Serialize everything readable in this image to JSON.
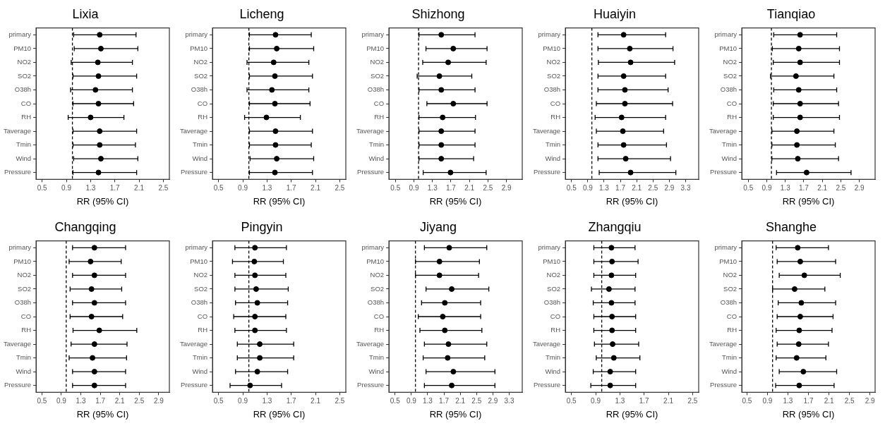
{
  "chart_data": [
    {
      "type": "scatter",
      "title": "Lixia",
      "xlabel": "RR (95% CI)",
      "orientation": "horizontal",
      "marker": "circle",
      "color": "#000000",
      "categories": [
        "primary",
        "PM10",
        "NO2",
        "SO2",
        "O38h",
        "CO",
        "RH",
        "Taverage",
        "Tmin",
        "Wind",
        "Pressure"
      ],
      "values": [
        1.45,
        1.47,
        1.42,
        1.43,
        1.38,
        1.43,
        1.3,
        1.45,
        1.45,
        1.47,
        1.43
      ],
      "errors": [
        [
          1.02,
          2.05
        ],
        [
          1.03,
          2.08
        ],
        [
          0.98,
          1.99
        ],
        [
          1.01,
          2.06
        ],
        [
          0.97,
          1.99
        ],
        [
          1.01,
          2.01
        ],
        [
          0.93,
          1.85
        ],
        [
          1.01,
          2.06
        ],
        [
          1.01,
          2.04
        ],
        [
          1.02,
          2.08
        ],
        [
          1.01,
          2.06
        ]
      ],
      "xlim": [
        0.4,
        2.6
      ],
      "xticks": [
        0.5,
        0.9,
        1.3,
        1.7,
        2.1,
        2.5
      ],
      "ref_lines": [
        {
          "axis": "x",
          "value": 1,
          "line_style": "dashed"
        }
      ]
    },
    {
      "type": "scatter",
      "title": "Licheng",
      "xlabel": "RR (95% CI)",
      "orientation": "horizontal",
      "marker": "circle",
      "color": "#000000",
      "categories": [
        "primary",
        "PM10",
        "NO2",
        "SO2",
        "O38h",
        "CO",
        "RH",
        "Taverage",
        "Tmin",
        "Wind",
        "Pressure"
      ],
      "values": [
        1.44,
        1.46,
        1.41,
        1.43,
        1.38,
        1.43,
        1.29,
        1.44,
        1.44,
        1.46,
        1.43
      ],
      "errors": [
        [
          1.01,
          2.03
        ],
        [
          1.01,
          2.07
        ],
        [
          0.97,
          1.99
        ],
        [
          1.01,
          2.05
        ],
        [
          0.97,
          1.99
        ],
        [
          1.01,
          2.01
        ],
        [
          0.93,
          1.85
        ],
        [
          1.01,
          2.05
        ],
        [
          1.01,
          2.03
        ],
        [
          1.02,
          2.07
        ],
        [
          1.01,
          2.05
        ]
      ],
      "xlim": [
        0.4,
        2.6
      ],
      "xticks": [
        0.5,
        0.9,
        1.3,
        1.7,
        2.1,
        2.5
      ],
      "ref_lines": [
        {
          "axis": "x",
          "value": 1,
          "line_style": "dashed"
        }
      ]
    },
    {
      "type": "scatter",
      "title": "Shizhong",
      "xlabel": "RR (95% CI)",
      "orientation": "horizontal",
      "marker": "circle",
      "color": "#000000",
      "categories": [
        "primary",
        "PM10",
        "NO2",
        "SO2",
        "O38h",
        "CO",
        "RH",
        "Taverage",
        "Tmin",
        "Wind",
        "Pressure"
      ],
      "values": [
        1.49,
        1.75,
        1.64,
        1.45,
        1.49,
        1.75,
        1.52,
        1.49,
        1.49,
        1.49,
        1.69
      ],
      "errors": [
        [
          1.01,
          2.22
        ],
        [
          1.16,
          2.48
        ],
        [
          1.09,
          2.46
        ],
        [
          0.97,
          2.15
        ],
        [
          1.01,
          2.22
        ],
        [
          1.18,
          2.48
        ],
        [
          1.01,
          2.23
        ],
        [
          1.01,
          2.22
        ],
        [
          1.01,
          2.22
        ],
        [
          1.01,
          2.19
        ],
        [
          1.1,
          2.46
        ]
      ],
      "xlim": [
        0.36,
        3.24
      ],
      "xticks": [
        0.5,
        0.9,
        1.3,
        1.7,
        2.1,
        2.5,
        2.9
      ],
      "ref_lines": [
        {
          "axis": "x",
          "value": 1,
          "line_style": "dashed"
        }
      ]
    },
    {
      "type": "scatter",
      "title": "Huaiyin",
      "xlabel": "RR (95% CI)",
      "orientation": "horizontal",
      "marker": "circle",
      "color": "#000000",
      "categories": [
        "primary",
        "PM10",
        "NO2",
        "SO2",
        "O38h",
        "CO",
        "RH",
        "Taverage",
        "Tmin",
        "Wind",
        "Pressure"
      ],
      "values": [
        1.78,
        1.93,
        1.95,
        1.78,
        1.81,
        1.81,
        1.73,
        1.76,
        1.78,
        1.83,
        1.95
      ],
      "errors": [
        [
          1.15,
          2.81
        ],
        [
          1.15,
          2.99
        ],
        [
          1.16,
          3.03
        ],
        [
          1.15,
          2.81
        ],
        [
          1.15,
          2.87
        ],
        [
          1.11,
          2.98
        ],
        [
          1.08,
          2.81
        ],
        [
          1.11,
          2.76
        ],
        [
          1.15,
          2.83
        ],
        [
          1.15,
          2.93
        ],
        [
          1.18,
          3.06
        ]
      ],
      "xlim": [
        0.35,
        3.62
      ],
      "xticks": [
        0.5,
        0.9,
        1.3,
        1.7,
        2.1,
        2.5,
        2.9,
        3.3
      ],
      "ref_lines": [
        {
          "axis": "x",
          "value": 1,
          "line_style": "dashed"
        }
      ]
    },
    {
      "type": "scatter",
      "title": "Tianqiao",
      "xlabel": "RR (95% CI)",
      "orientation": "horizontal",
      "marker": "circle",
      "color": "#000000",
      "categories": [
        "primary",
        "PM10",
        "NO2",
        "SO2",
        "O38h",
        "CO",
        "RH",
        "Taverage",
        "Tmin",
        "Wind",
        "Pressure"
      ],
      "values": [
        1.62,
        1.59,
        1.62,
        1.53,
        1.59,
        1.62,
        1.62,
        1.55,
        1.55,
        1.57,
        1.76
      ],
      "errors": [
        [
          1.05,
          2.41
        ],
        [
          1.02,
          2.47
        ],
        [
          1.04,
          2.47
        ],
        [
          0.98,
          2.35
        ],
        [
          1.05,
          2.41
        ],
        [
          1.04,
          2.45
        ],
        [
          1.04,
          2.47
        ],
        [
          1.01,
          2.35
        ],
        [
          1.01,
          2.38
        ],
        [
          1.01,
          2.45
        ],
        [
          1.11,
          2.72
        ]
      ],
      "xlim": [
        0.36,
        3.24
      ],
      "xticks": [
        0.5,
        0.9,
        1.3,
        1.7,
        2.1,
        2.5,
        2.9
      ],
      "ref_lines": [
        {
          "axis": "x",
          "value": 1,
          "line_style": "dashed"
        }
      ]
    },
    {
      "type": "scatter",
      "title": "Changqing",
      "xlabel": "RR (95% CI)",
      "orientation": "horizontal",
      "marker": "circle",
      "color": "#000000",
      "categories": [
        "primary",
        "PM10",
        "NO2",
        "SO2",
        "O38h",
        "CO",
        "RH",
        "Taverage",
        "Tmin",
        "Wind",
        "Pressure"
      ],
      "values": [
        1.58,
        1.5,
        1.58,
        1.52,
        1.58,
        1.52,
        1.68,
        1.58,
        1.54,
        1.58,
        1.58
      ],
      "errors": [
        [
          1.13,
          2.22
        ],
        [
          1.06,
          2.13
        ],
        [
          1.13,
          2.22
        ],
        [
          1.08,
          2.14
        ],
        [
          1.13,
          2.22
        ],
        [
          1.08,
          2.16
        ],
        [
          1.14,
          2.45
        ],
        [
          1.1,
          2.25
        ],
        [
          1.06,
          2.24
        ],
        [
          1.13,
          2.22
        ],
        [
          1.13,
          2.22
        ]
      ],
      "xlim": [
        0.38,
        3.12
      ],
      "xticks": [
        0.5,
        0.9,
        1.3,
        1.7,
        2.1,
        2.5,
        2.9
      ],
      "ref_lines": [
        {
          "axis": "x",
          "value": 1,
          "line_style": "dashed"
        }
      ]
    },
    {
      "type": "scatter",
      "title": "Pingyin",
      "xlabel": "RR (95% CI)",
      "orientation": "horizontal",
      "marker": "circle",
      "color": "#000000",
      "categories": [
        "primary",
        "PM10",
        "NO2",
        "SO2",
        "O38h",
        "CO",
        "RH",
        "Taverage",
        "Tmin",
        "Wind",
        "Pressure"
      ],
      "values": [
        1.1,
        1.09,
        1.1,
        1.12,
        1.14,
        1.1,
        1.1,
        1.18,
        1.18,
        1.14,
        1.02
      ],
      "errors": [
        [
          0.77,
          1.62
        ],
        [
          0.73,
          1.57
        ],
        [
          0.77,
          1.61
        ],
        [
          0.77,
          1.65
        ],
        [
          0.78,
          1.64
        ],
        [
          0.75,
          1.61
        ],
        [
          0.77,
          1.62
        ],
        [
          0.81,
          1.74
        ],
        [
          0.81,
          1.74
        ],
        [
          0.78,
          1.64
        ],
        [
          0.69,
          1.54
        ]
      ],
      "xlim": [
        0.4,
        2.6
      ],
      "xticks": [
        0.5,
        0.9,
        1.3,
        1.7,
        2.1,
        2.5
      ],
      "ref_lines": [
        {
          "axis": "x",
          "value": 1,
          "line_style": "dashed"
        }
      ]
    },
    {
      "type": "scatter",
      "title": "Jiyang",
      "xlabel": "RR (95% CI)",
      "orientation": "horizontal",
      "marker": "circle",
      "color": "#000000",
      "categories": [
        "primary",
        "PM10",
        "NO2",
        "SO2",
        "O38h",
        "CO",
        "RH",
        "Taverage",
        "Tmin",
        "Wind",
        "Pressure"
      ],
      "values": [
        1.83,
        1.59,
        1.59,
        1.89,
        1.72,
        1.67,
        1.72,
        1.81,
        1.79,
        1.93,
        1.89
      ],
      "errors": [
        [
          1.22,
          2.75
        ],
        [
          1.0,
          2.57
        ],
        [
          1.0,
          2.55
        ],
        [
          1.26,
          2.8
        ],
        [
          1.15,
          2.6
        ],
        [
          1.07,
          2.6
        ],
        [
          1.11,
          2.63
        ],
        [
          1.22,
          2.75
        ],
        [
          1.19,
          2.7
        ],
        [
          1.26,
          2.95
        ],
        [
          1.22,
          2.95
        ]
      ],
      "xlim": [
        0.35,
        3.62
      ],
      "xticks": [
        0.5,
        0.9,
        1.3,
        1.7,
        2.1,
        2.5,
        2.9,
        3.3
      ],
      "ref_lines": [
        {
          "axis": "x",
          "value": 1,
          "line_style": "dashed"
        }
      ]
    },
    {
      "type": "scatter",
      "title": "Zhangqiu",
      "xlabel": "RR (95% CI)",
      "orientation": "horizontal",
      "marker": "circle",
      "color": "#000000",
      "categories": [
        "primary",
        "PM10",
        "NO2",
        "SO2",
        "O38h",
        "CO",
        "RH",
        "Taverage",
        "Tmin",
        "Wind",
        "Pressure"
      ],
      "values": [
        1.16,
        1.17,
        1.16,
        1.12,
        1.16,
        1.17,
        1.17,
        1.18,
        1.2,
        1.14,
        1.14
      ],
      "errors": [
        [
          0.87,
          1.55
        ],
        [
          0.87,
          1.6
        ],
        [
          0.87,
          1.56
        ],
        [
          0.83,
          1.55
        ],
        [
          0.86,
          1.55
        ],
        [
          0.87,
          1.56
        ],
        [
          0.87,
          1.56
        ],
        [
          0.88,
          1.61
        ],
        [
          0.91,
          1.63
        ],
        [
          0.86,
          1.56
        ],
        [
          0.82,
          1.56
        ]
      ],
      "xlim": [
        0.4,
        2.6
      ],
      "xticks": [
        0.5,
        0.9,
        1.3,
        1.7,
        2.1,
        2.5
      ],
      "ref_lines": [
        {
          "axis": "x",
          "value": 1,
          "line_style": "dashed"
        }
      ]
    },
    {
      "type": "scatter",
      "title": "Shanghe",
      "xlabel": "RR (95% CI)",
      "orientation": "horizontal",
      "marker": "circle",
      "color": "#000000",
      "categories": [
        "primary",
        "PM10",
        "NO2",
        "SO2",
        "O38h",
        "CO",
        "RH",
        "Taverage",
        "Tmin",
        "Wind",
        "Pressure"
      ],
      "values": [
        1.49,
        1.54,
        1.62,
        1.43,
        1.56,
        1.54,
        1.52,
        1.51,
        1.47,
        1.6,
        1.52
      ],
      "errors": [
        [
          1.07,
          2.09
        ],
        [
          1.09,
          2.23
        ],
        [
          1.13,
          2.32
        ],
        [
          1.0,
          2.02
        ],
        [
          1.11,
          2.23
        ],
        [
          1.09,
          2.18
        ],
        [
          1.07,
          2.16
        ],
        [
          1.09,
          2.09
        ],
        [
          1.07,
          2.04
        ],
        [
          1.13,
          2.25
        ],
        [
          1.06,
          2.2
        ]
      ],
      "xlim": [
        0.4,
        3.0
      ],
      "xticks": [
        0.5,
        0.9,
        1.3,
        1.7,
        2.1,
        2.5,
        2.9
      ],
      "ref_lines": [
        {
          "axis": "x",
          "value": 1,
          "line_style": "dashed"
        }
      ]
    }
  ]
}
